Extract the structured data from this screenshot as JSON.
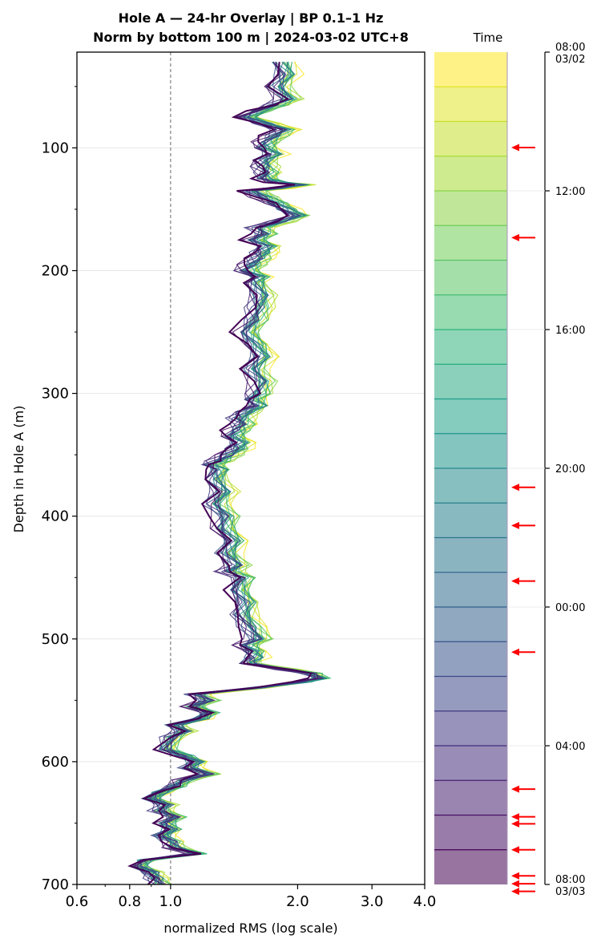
{
  "chart_data": {
    "type": "line",
    "title_line1": "Hole A — 24-hr Overlay  |  BP 0.1–1 Hz",
    "title_line2": "Norm by bottom 100 m  |  2024-03-02 UTC+8",
    "xlabel": "normalized RMS  (log scale)",
    "ylabel": "Depth in Hole A (m)",
    "xscale": "log",
    "xlim": [
      0.6,
      4.0
    ],
    "ylim": [
      700,
      22
    ],
    "y_inverted": true,
    "x_ticks": [
      {
        "value": 0.6,
        "label": "0.6"
      },
      {
        "value": 0.8,
        "label": "0.8"
      },
      {
        "value": 1.0,
        "label": "1.0"
      },
      {
        "value": 2.0,
        "label": "2.0"
      },
      {
        "value": 3.0,
        "label": "3.0"
      },
      {
        "value": 4.0,
        "label": "4.0"
      }
    ],
    "y_ticks": [
      {
        "value": 100,
        "label": "100"
      },
      {
        "value": 200,
        "label": "200"
      },
      {
        "value": 300,
        "label": "300"
      },
      {
        "value": 400,
        "label": "400"
      },
      {
        "value": 500,
        "label": "500"
      },
      {
        "value": 600,
        "label": "600"
      },
      {
        "value": 700,
        "label": "700"
      }
    ],
    "reference_line": {
      "x": 1.0,
      "style": "dashed",
      "color": "#808080"
    },
    "grid": true,
    "series_count": 24,
    "colormap": "viridis",
    "base_profile": {
      "depth": [
        30,
        40,
        50,
        60,
        65,
        70,
        75,
        80,
        85,
        90,
        95,
        100,
        105,
        110,
        115,
        120,
        125,
        128,
        130,
        133,
        135,
        140,
        145,
        150,
        155,
        160,
        165,
        170,
        175,
        180,
        185,
        190,
        195,
        200,
        205,
        210,
        220,
        230,
        240,
        250,
        260,
        270,
        280,
        290,
        300,
        305,
        310,
        315,
        320,
        325,
        330,
        335,
        340,
        345,
        350,
        355,
        358,
        362,
        370,
        380,
        390,
        400,
        410,
        420,
        430,
        440,
        445,
        450,
        460,
        470,
        480,
        490,
        500,
        505,
        510,
        515,
        520,
        525,
        528,
        532,
        535,
        540,
        545,
        550,
        555,
        560,
        565,
        570,
        575,
        580,
        590,
        595,
        600,
        605,
        610,
        615,
        620,
        625,
        630,
        635,
        640,
        645,
        650,
        655,
        660,
        665,
        670,
        675,
        680,
        685,
        690,
        695,
        700
      ],
      "x": [
        1.75,
        1.8,
        1.72,
        1.82,
        1.7,
        1.55,
        1.45,
        1.6,
        1.78,
        1.7,
        1.62,
        1.6,
        1.68,
        1.6,
        1.6,
        1.62,
        1.6,
        1.72,
        1.95,
        1.7,
        1.5,
        1.6,
        1.7,
        1.8,
        1.92,
        1.75,
        1.55,
        1.6,
        1.52,
        1.62,
        1.58,
        1.55,
        1.5,
        1.45,
        1.55,
        1.52,
        1.58,
        1.55,
        1.52,
        1.45,
        1.52,
        1.58,
        1.5,
        1.58,
        1.55,
        1.5,
        1.55,
        1.45,
        1.4,
        1.42,
        1.38,
        1.35,
        1.4,
        1.38,
        1.32,
        1.25,
        1.2,
        1.25,
        1.22,
        1.28,
        1.22,
        1.3,
        1.28,
        1.35,
        1.3,
        1.38,
        1.32,
        1.42,
        1.38,
        1.45,
        1.42,
        1.48,
        1.55,
        1.45,
        1.5,
        1.52,
        1.5,
        1.85,
        2.1,
        2.2,
        2.0,
        1.55,
        1.12,
        1.2,
        1.1,
        1.2,
        1.15,
        1.0,
        1.05,
        0.98,
        0.95,
        1.05,
        1.12,
        1.08,
        1.2,
        1.05,
        1.0,
        0.92,
        0.88,
        0.95,
        0.92,
        1.0,
        0.95,
        0.98,
        0.93,
        0.98,
        1.0,
        1.12,
        0.85,
        0.82,
        0.88,
        0.9,
        0.92
      ]
    },
    "time_panel": {
      "title": "Time",
      "ticks": [
        {
          "label": "08:00",
          "label2": "03/02"
        },
        {
          "label": "12:00",
          "label2": ""
        },
        {
          "label": "16:00",
          "label2": ""
        },
        {
          "label": "20:00",
          "label2": ""
        },
        {
          "label": "00:00",
          "label2": ""
        },
        {
          "label": "04:00",
          "label2": ""
        },
        {
          "label": "08:00",
          "label2": "03/03"
        }
      ],
      "segments": 24,
      "arrow_hours": [
        2.75,
        5.35,
        12.55,
        13.65,
        15.25,
        17.3,
        21.25,
        22.05,
        22.25,
        23.0,
        23.75,
        23.98,
        24.2
      ],
      "arrow_color": "#ff0000"
    }
  }
}
